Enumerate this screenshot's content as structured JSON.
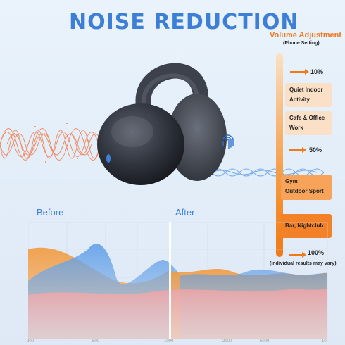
{
  "title": "NOISE REDUCTION",
  "volume": {
    "title": "Volume Adjustment",
    "subtitle": "(Phone Setting)",
    "markers": [
      "10%",
      "50%",
      "100%"
    ],
    "levels": [
      {
        "line1": "Quiet Indoor",
        "line2": "Activity"
      },
      {
        "line1": "Cafe & Office",
        "line2": "Work"
      },
      {
        "line1": "Gym",
        "line2": "Outdoor Sport"
      },
      {
        "line1": "Bar, Nightclub",
        "line2": ""
      }
    ],
    "note": "(Individual results may vary)"
  },
  "graph": {
    "before_label": "Before",
    "after_label": "After",
    "x_ticks": [
      "200",
      "500",
      "1000",
      "2000",
      "5000",
      "10"
    ]
  },
  "colors": {
    "accent_blue": "#3d7fd6",
    "accent_orange": "#ef7a16",
    "wave_blue": "#5b9be6",
    "wave_orange": "#f29a3e"
  }
}
